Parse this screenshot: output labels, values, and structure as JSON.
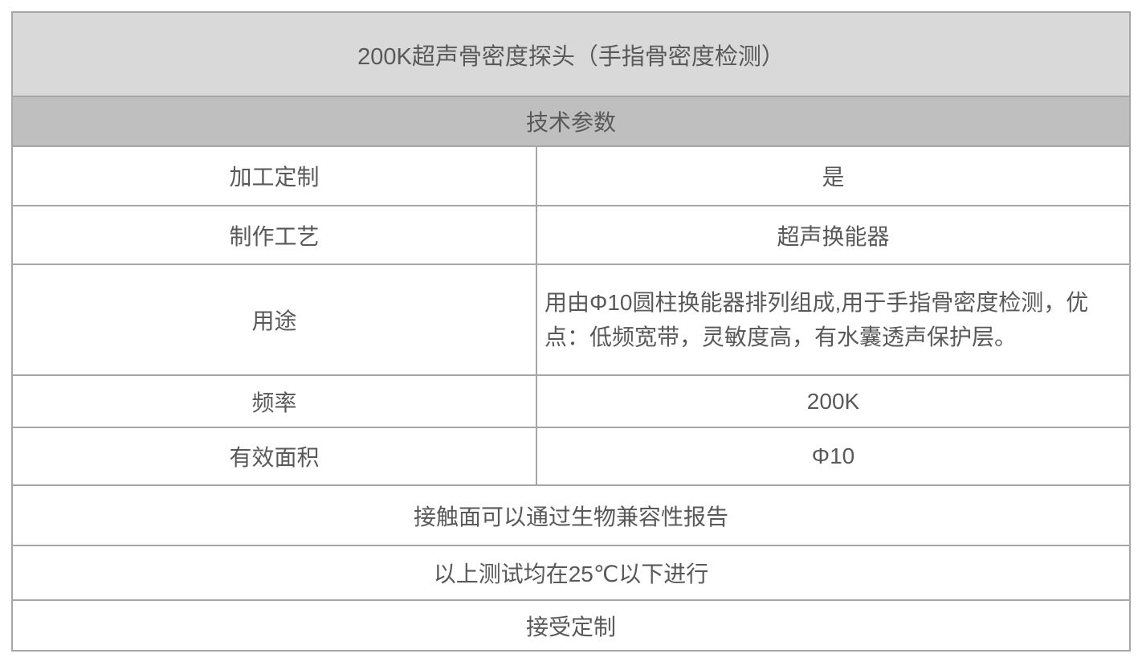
{
  "table": {
    "title": "200K超声骨密度探头（手指骨密度检测）",
    "section_header": "技术参数",
    "spec_rows": [
      {
        "label": "加工定制",
        "value": "是"
      },
      {
        "label": "制作工艺",
        "value": "超声换能器"
      },
      {
        "label": "用途",
        "value": "用由Φ10圆柱换能器排列组成,用于手指骨密度检测，优点：低频宽带，灵敏度高，有水囊透声保护层。"
      },
      {
        "label": "频率",
        "value": "200K"
      },
      {
        "label": "有效面积",
        "value": "Φ10"
      }
    ],
    "notes": [
      "接触面可以通过生物兼容性报告",
      "以上测试均在25℃以下进行",
      "接受定制"
    ],
    "colors": {
      "title_bg": "#d9d9d9",
      "section_bg": "#bfbfbf",
      "border": "#a6a6a6",
      "text": "#595959",
      "row_bg": "#ffffff"
    }
  }
}
